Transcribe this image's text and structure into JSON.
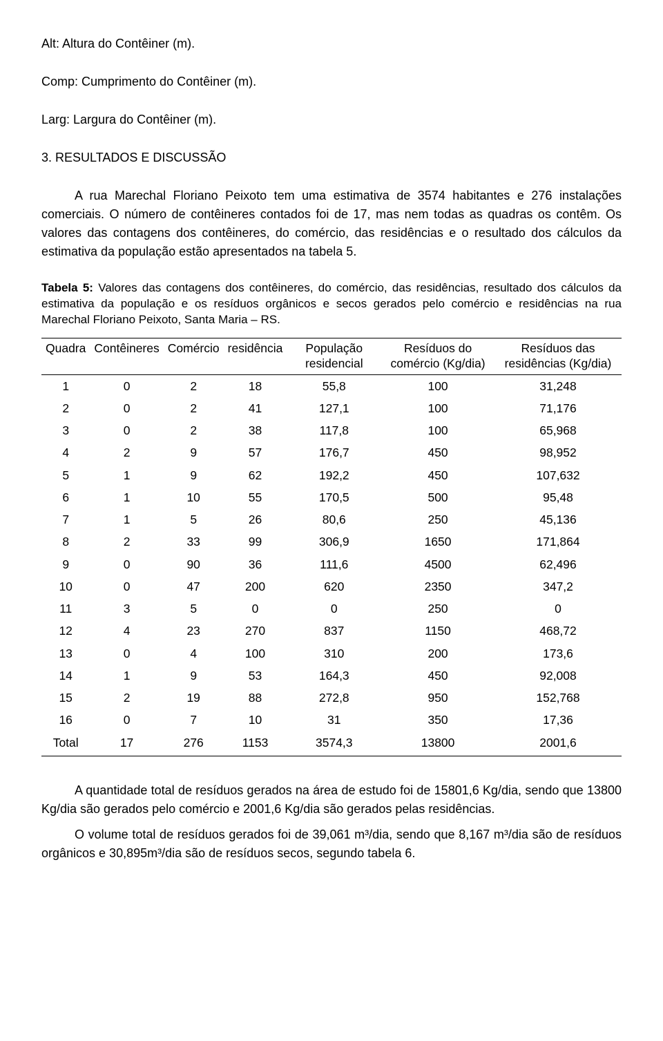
{
  "definitions": {
    "alt": "Alt: Altura do Contêiner (m).",
    "comp": "Comp: Cumprimento do Contêiner (m).",
    "larg": "Larg: Largura do Contêiner (m)."
  },
  "section": {
    "heading": "3. RESULTADOS E DISCUSSÃO",
    "para1": "A rua Marechal Floriano Peixoto tem uma estimativa de 3574 habitantes e 276 instalações comerciais. O número de contêineres contados foi de 17, mas nem todas as quadras os contêm. Os valores das contagens dos contêineres, do comércio, das residências e o resultado dos cálculos da estimativa da população estão apresentados na tabela 5."
  },
  "table": {
    "caption_bold": "Tabela 5:",
    "caption_rest": " Valores das contagens dos contêineres, do comércio, das residências, resultado dos cálculos da estimativa da população e os resíduos orgânicos e secos gerados pelo comércio e residências na rua Marechal Floriano Peixoto, Santa Maria – RS.",
    "columns": [
      "Quadra",
      "Contêineres",
      "Comércio",
      "residência",
      "População residencial",
      "Resíduos do comércio (Kg/dia)",
      "Resíduos das residências (Kg/dia)"
    ],
    "rows": [
      [
        "1",
        "0",
        "2",
        "18",
        "55,8",
        "100",
        "31,248"
      ],
      [
        "2",
        "0",
        "2",
        "41",
        "127,1",
        "100",
        "71,176"
      ],
      [
        "3",
        "0",
        "2",
        "38",
        "117,8",
        "100",
        "65,968"
      ],
      [
        "4",
        "2",
        "9",
        "57",
        "176,7",
        "450",
        "98,952"
      ],
      [
        "5",
        "1",
        "9",
        "62",
        "192,2",
        "450",
        "107,632"
      ],
      [
        "6",
        "1",
        "10",
        "55",
        "170,5",
        "500",
        "95,48"
      ],
      [
        "7",
        "1",
        "5",
        "26",
        "80,6",
        "250",
        "45,136"
      ],
      [
        "8",
        "2",
        "33",
        "99",
        "306,9",
        "1650",
        "171,864"
      ],
      [
        "9",
        "0",
        "90",
        "36",
        "111,6",
        "4500",
        "62,496"
      ],
      [
        "10",
        "0",
        "47",
        "200",
        "620",
        "2350",
        "347,2"
      ],
      [
        "11",
        "3",
        "5",
        "0",
        "0",
        "250",
        "0"
      ],
      [
        "12",
        "4",
        "23",
        "270",
        "837",
        "1150",
        "468,72"
      ],
      [
        "13",
        "0",
        "4",
        "100",
        "310",
        "200",
        "173,6"
      ],
      [
        "14",
        "1",
        "9",
        "53",
        "164,3",
        "450",
        "92,008"
      ],
      [
        "15",
        "2",
        "19",
        "88",
        "272,8",
        "950",
        "152,768"
      ],
      [
        "16",
        "0",
        "7",
        "10",
        "31",
        "350",
        "17,36"
      ]
    ],
    "total_label": "Total",
    "total_row": [
      "17",
      "276",
      "1153",
      "3574,3",
      "13800",
      "2001,6"
    ]
  },
  "post": {
    "para1": "A quantidade total de resíduos gerados na área de estudo foi de 15801,6 Kg/dia, sendo que 13800 Kg/dia são gerados pelo comércio e 2001,6 Kg/dia são gerados pelas residências.",
    "para2": "O volume total de resíduos gerados foi de 39,061 m³/dia, sendo que 8,167 m³/dia são de resíduos orgânicos e 30,895m³/dia são de resíduos secos, segundo tabela 6."
  }
}
